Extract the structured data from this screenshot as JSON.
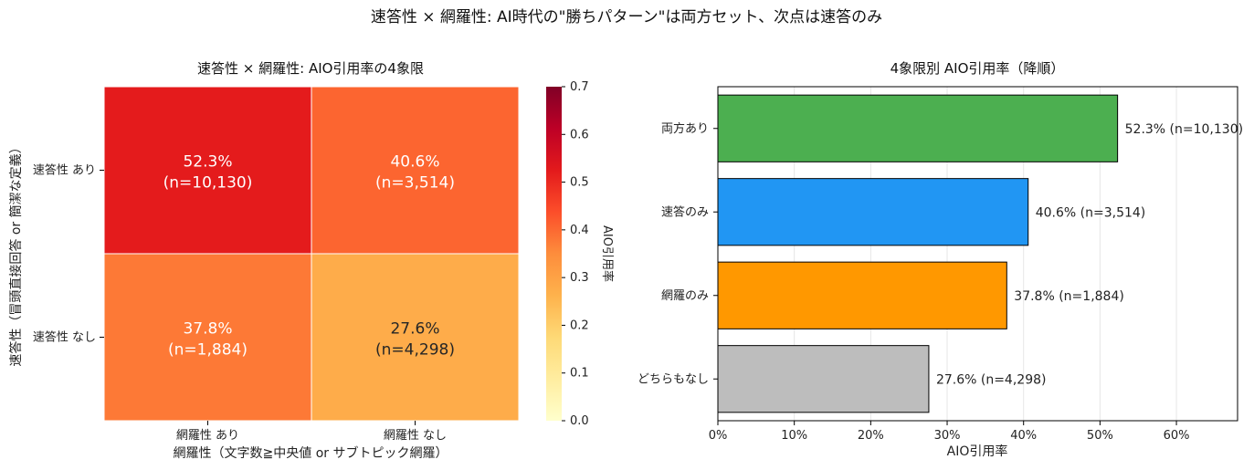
{
  "figure": {
    "suptitle": "速答性 × 網羅性: AI時代の\"勝ちパターン\"は両方セット、次点は速答のみ"
  },
  "chart_data": [
    {
      "type": "heatmap",
      "title": "速答性 × 網羅性: AIO引用率の4象限",
      "xlabel": "網羅性（文字数≧中央値 or サブトピック網羅）",
      "ylabel": "速答性（冒頭直接回答 or 簡潔な定義）",
      "x_categories": [
        "網羅性 あり",
        "網羅性 なし"
      ],
      "y_categories": [
        "速答性 あり",
        "速答性 なし"
      ],
      "values": [
        [
          0.523,
          0.406
        ],
        [
          0.378,
          0.276
        ]
      ],
      "cell_labels": [
        [
          {
            "pct": "52.3%",
            "n": "(n=10,130)"
          },
          {
            "pct": "40.6%",
            "n": "(n=3,514)"
          }
        ],
        [
          {
            "pct": "37.8%",
            "n": "(n=1,884)"
          },
          {
            "pct": "27.6%",
            "n": "(n=4,298)"
          }
        ]
      ],
      "colorbar": {
        "label": "AIO引用率",
        "range": [
          0.0,
          0.7
        ],
        "ticks": [
          "0.0",
          "0.1",
          "0.2",
          "0.3",
          "0.4",
          "0.5",
          "0.6",
          "0.7"
        ],
        "colormap": "YlOrRd"
      }
    },
    {
      "type": "bar",
      "orientation": "horizontal",
      "title": "4象限別 AIO引用率（降順）",
      "xlabel": "AIO引用率",
      "categories": [
        "両方あり",
        "速答のみ",
        "網羅のみ",
        "どちらもなし"
      ],
      "values": [
        0.523,
        0.406,
        0.378,
        0.276
      ],
      "labels": [
        "52.3% (n=10,130)",
        "40.6% (n=3,514)",
        "37.8% (n=1,884)",
        "27.6% (n=4,298)"
      ],
      "colors": [
        "#4caf50",
        "#2196f3",
        "#ff9800",
        "#bdbdbd"
      ],
      "xlim": [
        0,
        0.68
      ],
      "x_ticks": [
        "0%",
        "10%",
        "20%",
        "30%",
        "40%",
        "50%",
        "60%"
      ],
      "grid": "vertical"
    }
  ]
}
